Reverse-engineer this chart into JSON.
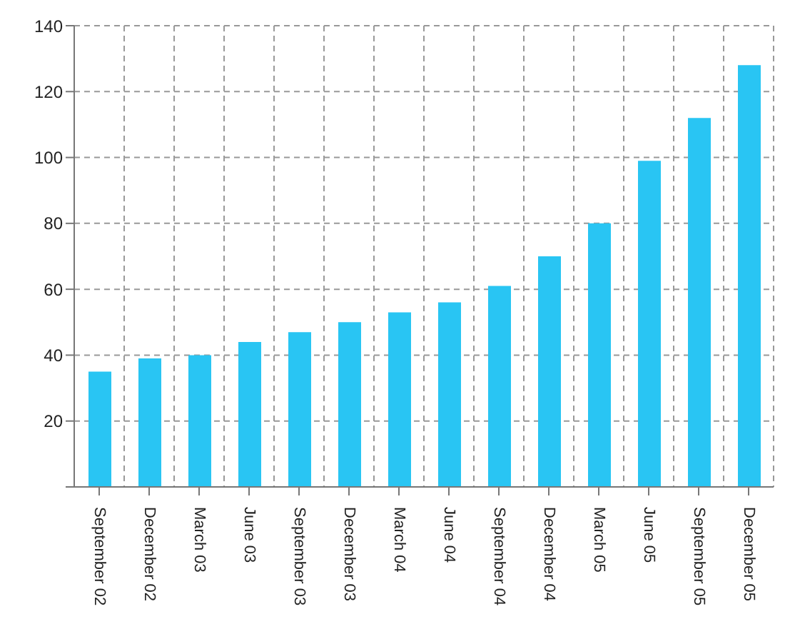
{
  "chart_data": {
    "type": "bar",
    "categories": [
      "September 02",
      "December 02",
      "March 03",
      "June 03",
      "September 03",
      "December 03",
      "March 04",
      "June 04",
      "September 04",
      "December 04",
      "March 05",
      "June 05",
      "September 05",
      "December 05"
    ],
    "values": [
      35,
      39,
      40,
      44,
      47,
      50,
      53,
      56,
      61,
      70,
      80,
      99,
      112,
      128
    ],
    "color": "#29c5f3",
    "ylim": [
      0,
      140
    ],
    "yticks": [
      {
        "value": 0,
        "label": null
      },
      20,
      40,
      60,
      80,
      100,
      120,
      140
    ],
    "grid": true
  }
}
